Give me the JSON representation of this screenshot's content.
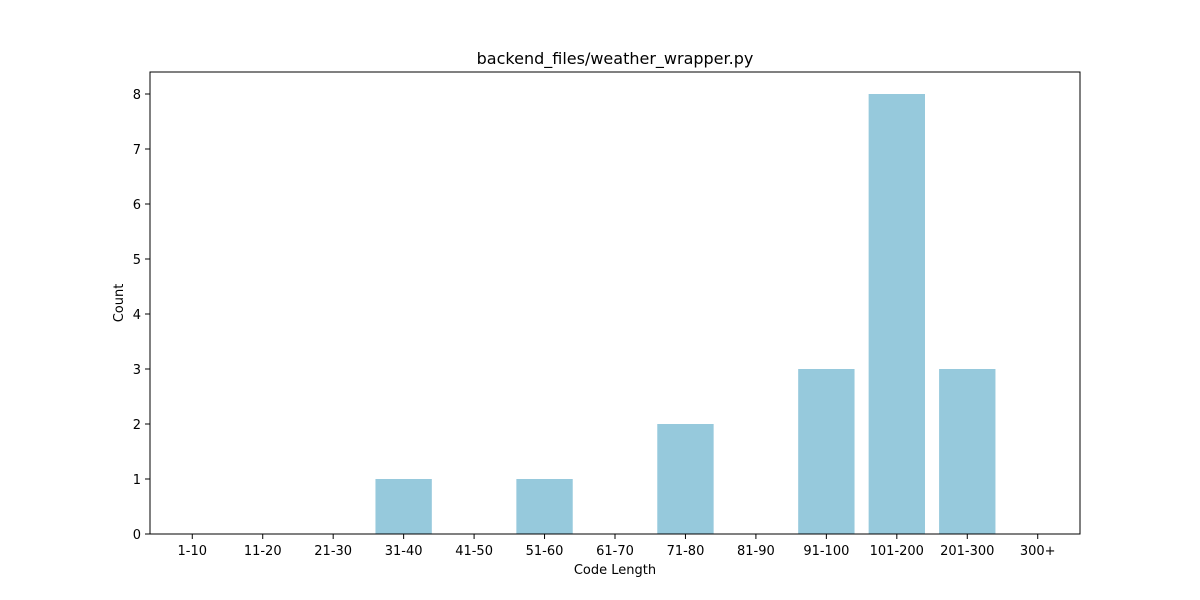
{
  "chart_data": {
    "type": "bar",
    "title": "backend_files/weather_wrapper.py",
    "xlabel": "Code Length",
    "ylabel": "Count",
    "categories": [
      "1-10",
      "11-20",
      "21-30",
      "31-40",
      "41-50",
      "51-60",
      "61-70",
      "71-80",
      "81-90",
      "91-100",
      "101-200",
      "201-300",
      "300+"
    ],
    "values": [
      0,
      0,
      0,
      1,
      0,
      1,
      0,
      2,
      0,
      3,
      8,
      3,
      0
    ],
    "ylim": [
      0,
      8.4
    ],
    "yticks": [
      0,
      1,
      2,
      3,
      4,
      5,
      6,
      7,
      8
    ],
    "bar_color": "#96c9dc",
    "grid": false,
    "legend": "none"
  }
}
